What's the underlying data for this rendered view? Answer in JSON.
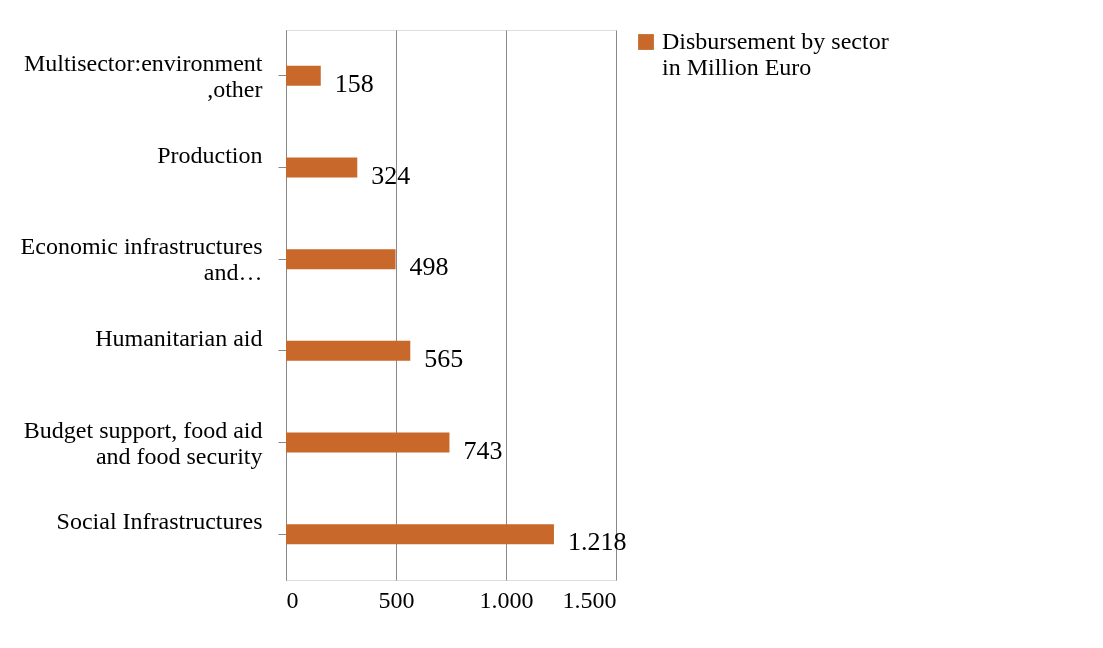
{
  "chart_data": {
    "type": "bar",
    "orientation": "horizontal",
    "categories": [
      "Multisector:environment ,other",
      "Production",
      "Economic infrastructures and…",
      "Humanitarian aid",
      "Budget support, food aid and food security",
      "Social Infrastructures"
    ],
    "series": [
      {
        "name": "Disbursement by sector in Million Euro",
        "color": "#c8692b",
        "values": [
          158,
          324,
          498,
          565,
          743,
          1218
        ],
        "value_labels": [
          "158",
          "324",
          "498",
          "565",
          "743",
          "1.218"
        ]
      }
    ],
    "xlim": [
      0,
      1500
    ],
    "xticks": [
      0,
      500,
      {
        "value": 1000,
        "label": "1.000"
      },
      {
        "value": 1500,
        "label": "1.500"
      }
    ],
    "grid": "x",
    "legend": "right"
  }
}
